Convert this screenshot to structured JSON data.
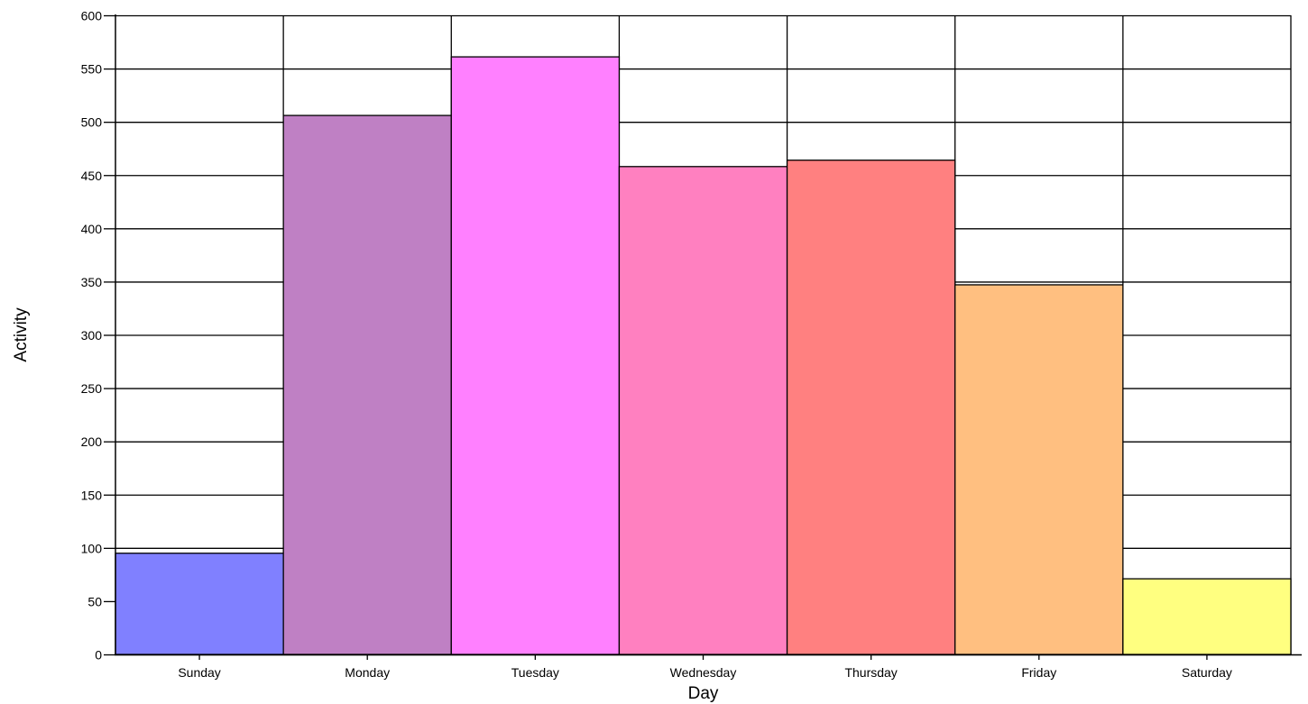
{
  "chart_data": {
    "type": "bar",
    "title": "",
    "xlabel": "Day",
    "ylabel": "Activity",
    "categories": [
      "Sunday",
      "Monday",
      "Tuesday",
      "Wednesday",
      "Thursday",
      "Friday",
      "Saturday"
    ],
    "values": [
      95,
      506,
      561,
      458,
      464,
      347,
      71
    ],
    "colors": [
      "#8080ff",
      "#bf80c4",
      "#ff80ff",
      "#ff80c0",
      "#ff8080",
      "#ffbf80",
      "#ffff80"
    ],
    "ylim": [
      0,
      600
    ],
    "yticks": [
      0,
      50,
      100,
      150,
      200,
      250,
      300,
      350,
      400,
      450,
      500,
      550,
      600
    ],
    "grid": {
      "horizontal": true,
      "vertical": true
    },
    "legend": "none"
  }
}
